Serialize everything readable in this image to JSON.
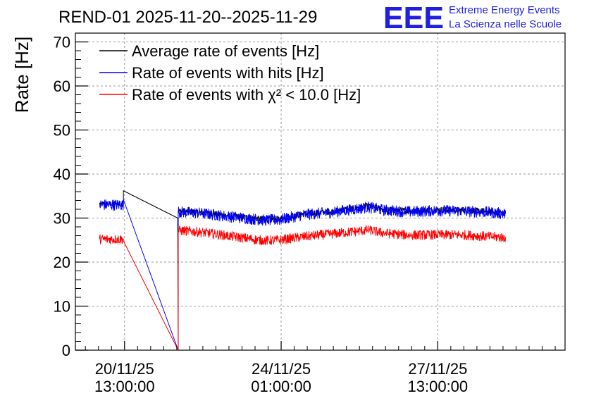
{
  "chart_data": {
    "type": "line",
    "title": "REND-01 2025-11-20--2025-11-29",
    "ylabel": "Rate [Hz]",
    "xlabel": "",
    "ylim": [
      0,
      72
    ],
    "yticks": [
      0,
      10,
      20,
      30,
      40,
      50,
      60,
      70
    ],
    "grid": true,
    "legend_position": "top-left",
    "x_units": "days since 2025-11-19 00:00",
    "xlim": [
      0.6,
      9.98
    ],
    "xticks": [
      {
        "x": 1.5417,
        "line1": "20/11/25",
        "line2": "13:00:00"
      },
      {
        "x": 4.5417,
        "line1": "24/11/25",
        "line2": "01:00:00"
      },
      {
        "x": 7.5417,
        "line1": "27/11/25",
        "line2": "13:00:00"
      }
    ],
    "series": [
      {
        "name": "Average rate of events [Hz]",
        "color": "#000000",
        "points": [
          [
            1.06,
            33.2
          ],
          [
            1.52,
            33.2
          ],
          [
            1.52,
            36.2
          ],
          [
            2.56,
            30.0
          ],
          [
            2.57,
            0.5
          ],
          [
            2.57,
            31.6
          ],
          [
            3.0,
            31.3
          ],
          [
            3.5,
            30.6
          ],
          [
            4.0,
            30.0
          ],
          [
            4.2,
            29.7
          ],
          [
            4.5,
            29.8
          ],
          [
            5.0,
            31.0
          ],
          [
            5.5,
            31.5
          ],
          [
            6.0,
            32.3
          ],
          [
            6.2,
            32.7
          ],
          [
            6.5,
            32.0
          ],
          [
            7.0,
            31.6
          ],
          [
            7.5,
            31.9
          ],
          [
            8.0,
            31.8
          ],
          [
            8.5,
            31.5
          ],
          [
            8.84,
            31.2
          ]
        ],
        "noise": 0.7
      },
      {
        "name": "Rate of events with hits [Hz]",
        "color": "#0000ff",
        "points": [
          [
            1.06,
            33.0
          ],
          [
            1.52,
            33.0
          ],
          [
            1.52,
            34.2
          ],
          [
            2.56,
            0.3
          ],
          [
            2.57,
            0.3
          ],
          [
            2.57,
            31.4
          ],
          [
            3.0,
            31.1
          ],
          [
            3.5,
            30.4
          ],
          [
            4.0,
            29.8
          ],
          [
            4.2,
            29.5
          ],
          [
            4.5,
            29.6
          ],
          [
            5.0,
            30.8
          ],
          [
            5.5,
            31.3
          ],
          [
            6.0,
            32.1
          ],
          [
            6.2,
            32.5
          ],
          [
            6.5,
            31.8
          ],
          [
            7.0,
            31.4
          ],
          [
            7.5,
            31.7
          ],
          [
            8.0,
            31.6
          ],
          [
            8.5,
            31.3
          ],
          [
            8.84,
            31.0
          ]
        ],
        "noise": 1.3
      },
      {
        "name": "Rate of events with χ² < 10.0 [Hz]",
        "color": "#ff0000",
        "points": [
          [
            1.06,
            25.2
          ],
          [
            1.52,
            25.2
          ],
          [
            1.52,
            24.8
          ],
          [
            2.56,
            0.2
          ],
          [
            2.57,
            0.2
          ],
          [
            2.57,
            27.2
          ],
          [
            3.0,
            26.8
          ],
          [
            3.5,
            26.0
          ],
          [
            4.0,
            25.2
          ],
          [
            4.2,
            24.9
          ],
          [
            4.5,
            25.0
          ],
          [
            5.0,
            25.8
          ],
          [
            5.5,
            26.4
          ],
          [
            6.0,
            27.0
          ],
          [
            6.2,
            27.3
          ],
          [
            6.5,
            26.6
          ],
          [
            7.0,
            26.1
          ],
          [
            7.5,
            26.2
          ],
          [
            8.0,
            26.2
          ],
          [
            8.5,
            25.8
          ],
          [
            8.84,
            25.6
          ]
        ],
        "noise": 1.1
      }
    ]
  },
  "logo": {
    "text": "EEE",
    "line1": "Extreme Energy Events",
    "line2": "La Scienza nelle Scuole"
  }
}
